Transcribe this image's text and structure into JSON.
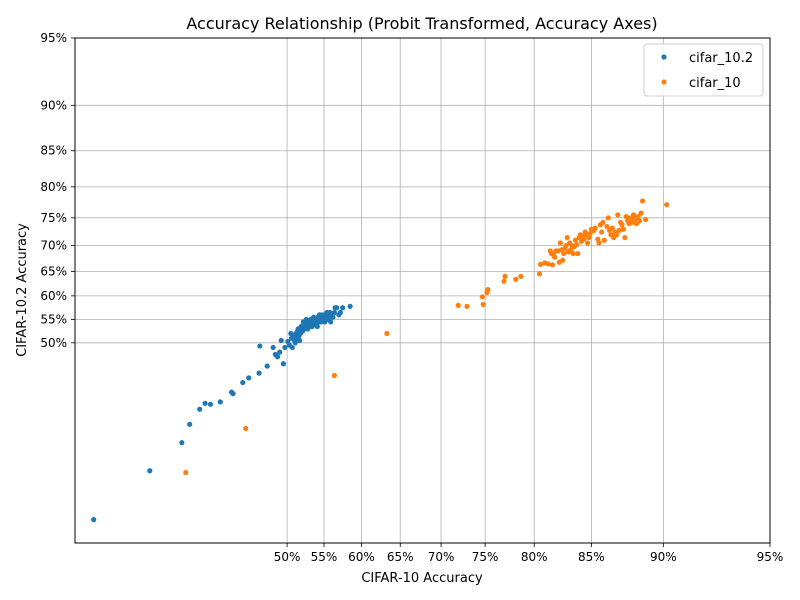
{
  "chart_data": {
    "type": "scatter",
    "title": "Accuracy Relationship (Probit Transformed, Accuracy Axes)",
    "xlabel": "CIFAR-10 Accuracy",
    "ylabel": "CIFAR-10.2 Accuracy",
    "scale": "probit",
    "xlim": [
      0.235,
      0.95
    ],
    "ylim": [
      0.14,
      0.95
    ],
    "x_ticks": [
      0.5,
      0.55,
      0.6,
      0.65,
      0.7,
      0.75,
      0.8,
      0.85,
      0.9,
      0.95
    ],
    "x_tick_labels": [
      "50%",
      "55%",
      "60%",
      "65%",
      "70%",
      "75%",
      "80%",
      "85%",
      "90%",
      "95%"
    ],
    "y_ticks": [
      0.5,
      0.55,
      0.6,
      0.65,
      0.7,
      0.75,
      0.8,
      0.85,
      0.9,
      0.95
    ],
    "y_tick_labels": [
      "50%",
      "55%",
      "60%",
      "65%",
      "70%",
      "75%",
      "80%",
      "85%",
      "90%",
      "95%"
    ],
    "grid": true,
    "legend_position": "top-right",
    "series": [
      {
        "name": "cifar_10.2",
        "color": "#1f77b4",
        "points": [
          [
            0.255,
            0.17
          ],
          [
            0.32,
            0.245
          ],
          [
            0.36,
            0.295
          ],
          [
            0.37,
            0.33
          ],
          [
            0.383,
            0.36
          ],
          [
            0.39,
            0.372
          ],
          [
            0.397,
            0.37
          ],
          [
            0.41,
            0.375
          ],
          [
            0.425,
            0.395
          ],
          [
            0.427,
            0.392
          ],
          [
            0.44,
            0.415
          ],
          [
            0.448,
            0.425
          ],
          [
            0.462,
            0.435
          ],
          [
            0.463,
            0.493
          ],
          [
            0.473,
            0.45
          ],
          [
            0.481,
            0.49
          ],
          [
            0.484,
            0.475
          ],
          [
            0.487,
            0.47
          ],
          [
            0.49,
            0.48
          ],
          [
            0.492,
            0.505
          ],
          [
            0.495,
            0.455
          ],
          [
            0.497,
            0.49
          ],
          [
            0.501,
            0.503
          ],
          [
            0.503,
            0.495
          ],
          [
            0.505,
            0.52
          ],
          [
            0.506,
            0.51
          ],
          [
            0.507,
            0.49
          ],
          [
            0.509,
            0.515
          ],
          [
            0.51,
            0.505
          ],
          [
            0.511,
            0.5
          ],
          [
            0.512,
            0.52
          ],
          [
            0.513,
            0.51
          ],
          [
            0.514,
            0.525
          ],
          [
            0.515,
            0.53
          ],
          [
            0.516,
            0.515
          ],
          [
            0.517,
            0.505
          ],
          [
            0.518,
            0.52
          ],
          [
            0.519,
            0.535
          ],
          [
            0.52,
            0.53
          ],
          [
            0.521,
            0.525
          ],
          [
            0.522,
            0.545
          ],
          [
            0.523,
            0.54
          ],
          [
            0.524,
            0.53
          ],
          [
            0.525,
            0.535
          ],
          [
            0.526,
            0.55
          ],
          [
            0.527,
            0.545
          ],
          [
            0.528,
            0.53
          ],
          [
            0.529,
            0.54
          ],
          [
            0.53,
            0.535
          ],
          [
            0.531,
            0.545
          ],
          [
            0.532,
            0.55
          ],
          [
            0.533,
            0.54
          ],
          [
            0.534,
            0.535
          ],
          [
            0.535,
            0.545
          ],
          [
            0.536,
            0.555
          ],
          [
            0.537,
            0.55
          ],
          [
            0.538,
            0.54
          ],
          [
            0.539,
            0.545
          ],
          [
            0.54,
            0.55
          ],
          [
            0.541,
            0.535
          ],
          [
            0.542,
            0.555
          ],
          [
            0.543,
            0.545
          ],
          [
            0.544,
            0.56
          ],
          [
            0.545,
            0.55
          ],
          [
            0.546,
            0.545
          ],
          [
            0.547,
            0.555
          ],
          [
            0.548,
            0.56
          ],
          [
            0.549,
            0.55
          ],
          [
            0.55,
            0.555
          ],
          [
            0.551,
            0.545
          ],
          [
            0.552,
            0.56
          ],
          [
            0.553,
            0.555
          ],
          [
            0.554,
            0.565
          ],
          [
            0.555,
            0.55
          ],
          [
            0.556,
            0.56
          ],
          [
            0.557,
            0.555
          ],
          [
            0.558,
            0.565
          ],
          [
            0.559,
            0.545
          ],
          [
            0.56,
            0.56
          ],
          [
            0.562,
            0.555
          ],
          [
            0.564,
            0.565
          ],
          [
            0.565,
            0.575
          ],
          [
            0.567,
            0.575
          ],
          [
            0.57,
            0.56
          ],
          [
            0.572,
            0.565
          ],
          [
            0.575,
            0.575
          ],
          [
            0.585,
            0.578
          ]
        ]
      },
      {
        "name": "cifar_10",
        "color": "#ff7f0e",
        "points": [
          [
            0.365,
            0.242
          ],
          [
            0.444,
            0.322
          ],
          [
            0.564,
            0.43
          ],
          [
            0.633,
            0.52
          ],
          [
            0.72,
            0.58
          ],
          [
            0.73,
            0.578
          ],
          [
            0.747,
            0.598
          ],
          [
            0.748,
            0.582
          ],
          [
            0.752,
            0.607
          ],
          [
            0.753,
            0.613
          ],
          [
            0.77,
            0.63
          ],
          [
            0.771,
            0.64
          ],
          [
            0.782,
            0.634
          ],
          [
            0.787,
            0.64
          ],
          [
            0.805,
            0.645
          ],
          [
            0.806,
            0.664
          ],
          [
            0.81,
            0.667
          ],
          [
            0.813,
            0.665
          ],
          [
            0.815,
            0.69
          ],
          [
            0.816,
            0.685
          ],
          [
            0.817,
            0.663
          ],
          [
            0.818,
            0.682
          ],
          [
            0.819,
            0.678
          ],
          [
            0.82,
            0.69
          ],
          [
            0.822,
            0.69
          ],
          [
            0.823,
            0.668
          ],
          [
            0.824,
            0.705
          ],
          [
            0.825,
            0.692
          ],
          [
            0.826,
            0.672
          ],
          [
            0.827,
            0.685
          ],
          [
            0.828,
            0.695
          ],
          [
            0.829,
            0.7
          ],
          [
            0.83,
            0.715
          ],
          [
            0.831,
            0.688
          ],
          [
            0.832,
            0.705
          ],
          [
            0.833,
            0.692
          ],
          [
            0.834,
            0.7
          ],
          [
            0.835,
            0.685
          ],
          [
            0.836,
            0.698
          ],
          [
            0.837,
            0.71
          ],
          [
            0.838,
            0.702
          ],
          [
            0.839,
            0.685
          ],
          [
            0.84,
            0.715
          ],
          [
            0.841,
            0.72
          ],
          [
            0.842,
            0.708
          ],
          [
            0.843,
            0.718
          ],
          [
            0.844,
            0.712
          ],
          [
            0.845,
            0.725
          ],
          [
            0.846,
            0.72
          ],
          [
            0.847,
            0.705
          ],
          [
            0.848,
            0.715
          ],
          [
            0.849,
            0.722
          ],
          [
            0.85,
            0.73
          ],
          [
            0.852,
            0.728
          ],
          [
            0.853,
            0.732
          ],
          [
            0.855,
            0.712
          ],
          [
            0.856,
            0.705
          ],
          [
            0.857,
            0.738
          ],
          [
            0.858,
            0.725
          ],
          [
            0.859,
            0.742
          ],
          [
            0.86,
            0.71
          ],
          [
            0.862,
            0.735
          ],
          [
            0.863,
            0.75
          ],
          [
            0.864,
            0.728
          ],
          [
            0.865,
            0.72
          ],
          [
            0.866,
            0.732
          ],
          [
            0.867,
            0.715
          ],
          [
            0.868,
            0.725
          ],
          [
            0.869,
            0.72
          ],
          [
            0.87,
            0.755
          ],
          [
            0.871,
            0.728
          ],
          [
            0.872,
            0.742
          ],
          [
            0.873,
            0.738
          ],
          [
            0.874,
            0.73
          ],
          [
            0.875,
            0.715
          ],
          [
            0.876,
            0.752
          ],
          [
            0.877,
            0.745
          ],
          [
            0.878,
            0.74
          ],
          [
            0.879,
            0.75
          ],
          [
            0.88,
            0.742
          ],
          [
            0.881,
            0.755
          ],
          [
            0.882,
            0.748
          ],
          [
            0.883,
            0.74
          ],
          [
            0.884,
            0.752
          ],
          [
            0.885,
            0.745
          ],
          [
            0.886,
            0.758
          ],
          [
            0.887,
            0.778
          ],
          [
            0.889,
            0.747
          ],
          [
            0.902,
            0.772
          ]
        ]
      }
    ]
  }
}
